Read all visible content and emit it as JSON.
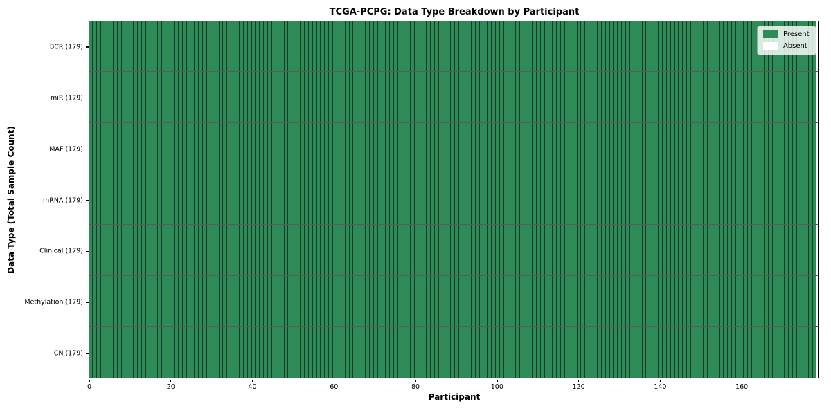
{
  "chart_data": {
    "type": "heatmap",
    "title": "TCGA-PCPG: Data Type Breakdown by Participant",
    "xlabel": "Participant",
    "ylabel": "Data Type (Total Sample Count)",
    "n_participants": 179,
    "xlim": [
      0,
      179
    ],
    "x_ticks": [
      0,
      20,
      40,
      60,
      80,
      100,
      120,
      140,
      160
    ],
    "n_rows": 7,
    "rows": [
      {
        "label": "BCR (179)",
        "data_type": "BCR",
        "total_sample_count": 179,
        "present_count": 179,
        "absent_count": 0
      },
      {
        "label": "miR (179)",
        "data_type": "miR",
        "total_sample_count": 179,
        "present_count": 179,
        "absent_count": 0
      },
      {
        "label": "MAF (179)",
        "data_type": "MAF",
        "total_sample_count": 179,
        "present_count": 179,
        "absent_count": 0
      },
      {
        "label": "mRNA (179)",
        "data_type": "mRNA",
        "total_sample_count": 179,
        "present_count": 179,
        "absent_count": 0
      },
      {
        "label": "Clinical (179)",
        "data_type": "Clinical",
        "total_sample_count": 179,
        "present_count": 179,
        "absent_count": 0
      },
      {
        "label": "Methylation (179)",
        "data_type": "Methylation",
        "total_sample_count": 179,
        "present_count": 179,
        "absent_count": 0
      },
      {
        "label": "CN (179)",
        "data_type": "CN",
        "total_sample_count": 179,
        "present_count": 179,
        "absent_count": 0
      }
    ],
    "all_cells_present": true,
    "legend": [
      {
        "label": "Present",
        "color": "#2e8b57"
      },
      {
        "label": "Absent",
        "color": "#ffffff"
      }
    ],
    "legend_position": "upper-right",
    "grid": false,
    "colors": {
      "present": "#2e8b57",
      "absent": "#ffffff",
      "cell_edge": "rgba(0,0,0,0.55)",
      "row_separator": "rgba(0,0,0,0.65)",
      "plot_border": "#000000",
      "background": "#ffffff",
      "legend_background": "rgba(255,255,255,0.82)"
    }
  }
}
